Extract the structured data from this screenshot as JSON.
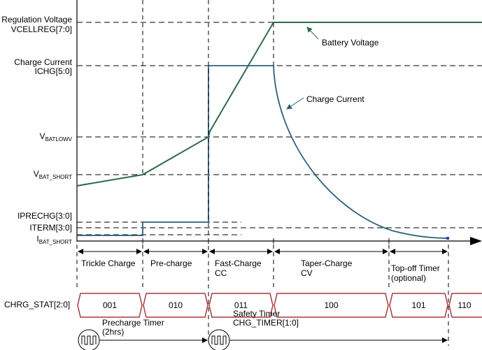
{
  "levels": {
    "vcellreg_1": "Regulation Voltage",
    "vcellreg_2": "VCELLREG[7:0]",
    "ichg_1": "Charge Current",
    "ichg_2": "ICHG[5:0]",
    "vbatlow_main": "V",
    "vbatlow_sub": "BATLOWV",
    "vbatshort_main": "V",
    "vbatshort_sub": "BAT_SHORT",
    "iprechg": "IPRECHG[3:0]",
    "iterm": "ITERM[3:0]",
    "ibatshort_main": "I",
    "ibatshort_sub": "BAT_SHORT"
  },
  "annotations": {
    "battery_voltage": "Battery Voltage",
    "charge_current": "Charge Current"
  },
  "phases": [
    {
      "l1": "Trickle Charge",
      "l2": ""
    },
    {
      "l1": "Pre-charge",
      "l2": ""
    },
    {
      "l1": "Fast-Charge",
      "l2": "CC"
    },
    {
      "l1": "Taper-Charge",
      "l2": "CV"
    },
    {
      "l1": "Top-off Timer",
      "l2": "(optional)"
    }
  ],
  "status": {
    "label": "CHRG_STAT[2:0]",
    "codes": [
      "001",
      "010",
      "011",
      "100",
      "101",
      "110"
    ]
  },
  "timers": {
    "precharge_1": "Precharge Timer",
    "precharge_2": "(2hrs)",
    "safety_1": "Safety Timer",
    "safety_2": "CHG_TIMER[1:0]"
  },
  "colors": {
    "voltage": "#2e6b47",
    "current": "#2f5f7a",
    "status": "#a83a3a"
  }
}
